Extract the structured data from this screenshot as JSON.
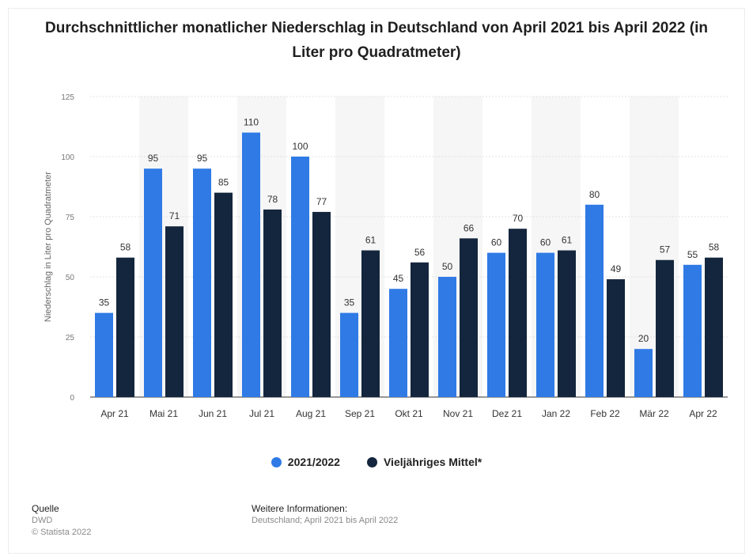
{
  "chart_data": {
    "type": "bar",
    "title": "Durchschnittlicher monatlicher Niederschlag in Deutschland von April 2021 bis April 2022 (in Liter pro Quadratmeter)",
    "ylabel": "Niederschlag in Liter pro Quadratmeter",
    "xlabel": "",
    "ylim": [
      0,
      125
    ],
    "yticks": [
      0,
      25,
      50,
      75,
      100,
      125
    ],
    "grid": true,
    "legend_position": "bottom",
    "categories": [
      "Apr 21",
      "Mai 21",
      "Jun 21",
      "Jul 21",
      "Aug 21",
      "Sep 21",
      "Okt 21",
      "Nov 21",
      "Dez 21",
      "Jan 22",
      "Feb 22",
      "Mär 22",
      "Apr 22"
    ],
    "series": [
      {
        "name": "2021/2022",
        "color": "#2f7ae5",
        "values": [
          35,
          95,
          95,
          110,
          100,
          35,
          45,
          50,
          60,
          60,
          80,
          20,
          55
        ]
      },
      {
        "name": "Vieljähriges Mittel*",
        "color": "#14263d",
        "values": [
          58,
          71,
          85,
          78,
          77,
          61,
          56,
          66,
          70,
          61,
          49,
          57,
          58
        ]
      }
    ]
  },
  "footer": {
    "source_heading": "Quelle",
    "source_name": "DWD",
    "copyright": "© Statista 2022",
    "info_heading": "Weitere Informationen:",
    "info_text": "Deutschland; April 2021 bis April 2022"
  }
}
